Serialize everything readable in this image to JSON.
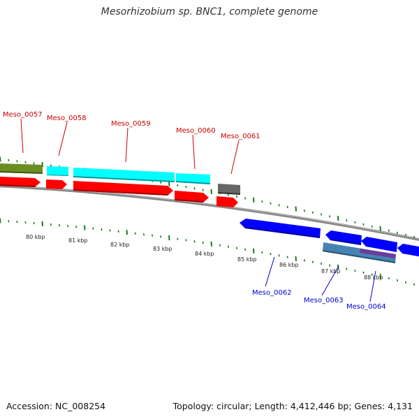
{
  "header": {
    "title": "Mesorhizobium sp. BNC1, complete genome"
  },
  "footer": {
    "accession": "Accession: NC_008254",
    "summary": "Topology: circular; Length: 4,412,446 bp; Genes: 4,131"
  },
  "colors": {
    "forward_cds": "#ff0000",
    "reverse_cds": "#0000ff",
    "forward_label": "#cc0000",
    "reverse_label": "#0000cc",
    "rna_feature": "#00ffff",
    "olive_feature": "#6b8e23",
    "gray_feature": "#666666",
    "steelblue_feature": "#4682b4",
    "purple_feature": "#6a3d9a",
    "backbone": "#888888",
    "tick": "#1a7a1a"
  },
  "scale": {
    "units": "kbp",
    "labels": [
      "80 kbp",
      "81 kbp",
      "82 kbp",
      "83 kbp",
      "84 kbp",
      "85 kbp",
      "86 kbp",
      "87 kbp",
      "88 kbp"
    ]
  },
  "gene_labels": {
    "forward": [
      "Meso_0057",
      "Meso_0058",
      "Meso_0059",
      "Meso_0060",
      "Meso_0061"
    ],
    "reverse": [
      "Meso_0062",
      "Meso_0063",
      "Meso_0064"
    ]
  }
}
